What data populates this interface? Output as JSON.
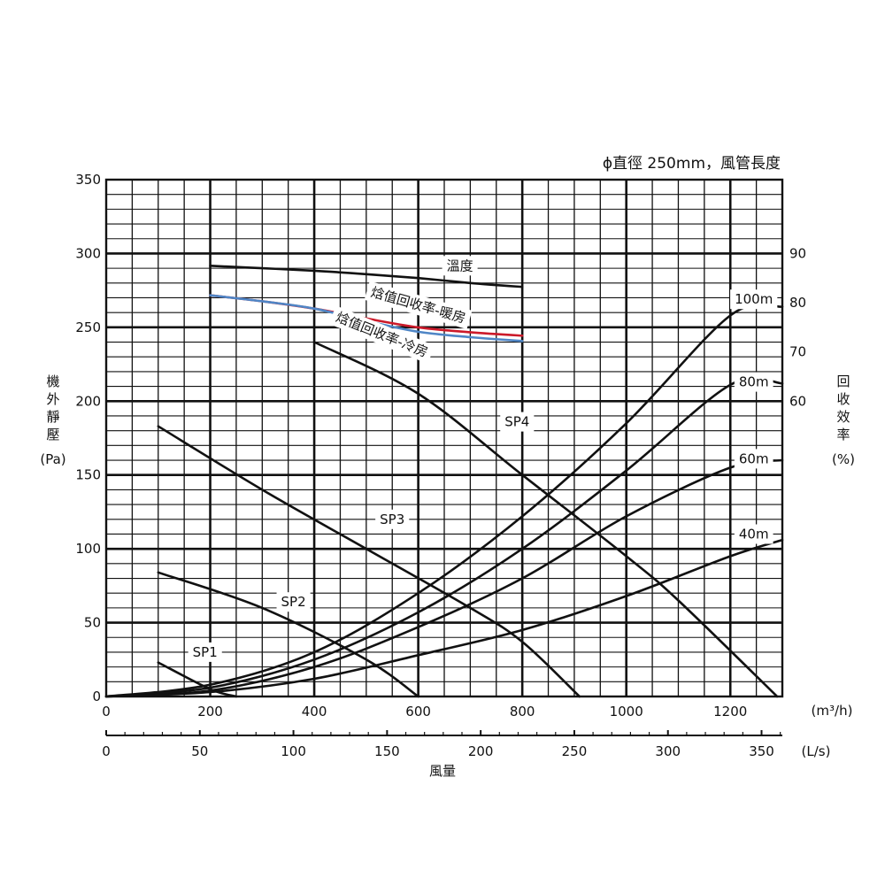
{
  "chart_data": {
    "type": "line",
    "title": "ϕ直徑 250mm，風管長度",
    "xlabel": "風量",
    "x_unit_primary": "(m³/h)",
    "x_unit_secondary": "(L/s)",
    "ylabel_left_chars": [
      "機",
      "外",
      "靜",
      "壓"
    ],
    "ylabel_left_unit": "(Pa)",
    "ylabel_right_chars": [
      "回",
      "收",
      "效",
      "率"
    ],
    "ylabel_right_unit": "(%)",
    "xlim": [
      0,
      1300
    ],
    "x_ticks": [
      0,
      200,
      400,
      600,
      800,
      1000,
      1200
    ],
    "x2lim": [
      0,
      361.1
    ],
    "x2_ticks": [
      0,
      50,
      100,
      150,
      200,
      250,
      300,
      350
    ],
    "ylim": [
      0,
      350
    ],
    "y_ticks": [
      0,
      50,
      100,
      150,
      200,
      250,
      300,
      350
    ],
    "y2lim": [
      0,
      105
    ],
    "y2_ticks": [
      60,
      70,
      80,
      90
    ],
    "grid": true,
    "series": [
      {
        "name": "SP1",
        "axis": "left",
        "color": "#111111",
        "x": [
          100,
          200,
          250
        ],
        "y": [
          23,
          5,
          0
        ]
      },
      {
        "name": "SP2",
        "axis": "left",
        "color": "#111111",
        "x": [
          100,
          300,
          500,
          600
        ],
        "y": [
          84,
          60,
          25,
          0
        ]
      },
      {
        "name": "SP3",
        "axis": "left",
        "color": "#111111",
        "x": [
          100,
          300,
          500,
          700,
          800,
          910
        ],
        "y": [
          183,
          140,
          100,
          60,
          37,
          0
        ]
      },
      {
        "name": "SP4",
        "axis": "left",
        "color": "#111111",
        "x": [
          400,
          600,
          800,
          1000,
          1100,
          1290
        ],
        "y": [
          240,
          205,
          150,
          95,
          65,
          0
        ]
      },
      {
        "name": "溫度",
        "axis": "right",
        "color": "#111111",
        "x": [
          200,
          300,
          400,
          500,
          600,
          700,
          800
        ],
        "y": [
          87.5,
          87.0,
          86.5,
          85.8,
          85.0,
          84.0,
          83.2
        ]
      },
      {
        "name": "焓值回收率-暖房",
        "axis": "right",
        "color": "#cc1a2a",
        "x": [
          200,
          300,
          400,
          500,
          600,
          700,
          800
        ],
        "y": [
          81.5,
          80.3,
          78.8,
          76.8,
          75.0,
          74.0,
          73.3
        ]
      },
      {
        "name": "焓值回收率-冷房",
        "axis": "right",
        "color": "#4f86c6",
        "x": [
          200,
          300,
          400,
          500,
          600,
          700,
          800
        ],
        "y": [
          81.5,
          80.3,
          78.8,
          76.3,
          74.1,
          73.0,
          72.2
        ]
      },
      {
        "name": "100m",
        "axis": "left",
        "color": "#111111",
        "x": [
          0,
          200,
          400,
          600,
          800,
          1000,
          1200,
          1300
        ],
        "y": [
          0,
          8,
          30,
          70,
          122,
          185,
          258,
          264
        ]
      },
      {
        "name": "80m",
        "axis": "left",
        "color": "#111111",
        "x": [
          0,
          200,
          400,
          600,
          800,
          1000,
          1200,
          1300
        ],
        "y": [
          0,
          6,
          25,
          57,
          100,
          153,
          211,
          212
        ]
      },
      {
        "name": "60m",
        "axis": "left",
        "color": "#111111",
        "x": [
          0,
          200,
          400,
          600,
          800,
          1000,
          1200,
          1300
        ],
        "y": [
          0,
          4,
          20,
          47,
          80,
          122,
          155,
          160
        ]
      },
      {
        "name": "40m",
        "axis": "left",
        "color": "#111111",
        "x": [
          0,
          200,
          400,
          600,
          800,
          1000,
          1200,
          1300
        ],
        "y": [
          0,
          3,
          12,
          28,
          45,
          68,
          95,
          106
        ]
      }
    ],
    "annotations": [
      {
        "text": "SP1",
        "x": 190,
        "y": 30
      },
      {
        "text": "SP2",
        "x": 360,
        "y": 64
      },
      {
        "text": "SP3",
        "x": 550,
        "y": 120
      },
      {
        "text": "SP4",
        "x": 790,
        "y": 186
      },
      {
        "text": "溫度",
        "x": 680,
        "y": 87.5,
        "axis": "right"
      },
      {
        "text": "焓值回收率-暖房",
        "x": 600,
        "y": 79.5,
        "axis": "right",
        "rotate": 16
      },
      {
        "text": "焓值回收率-冷房",
        "x": 530,
        "y": 73.5,
        "axis": "right",
        "rotate": 22
      },
      {
        "text": "100m",
        "x": 1245,
        "y": 269
      },
      {
        "text": "80m",
        "x": 1245,
        "y": 213
      },
      {
        "text": "60m",
        "x": 1245,
        "y": 161
      },
      {
        "text": "40m",
        "x": 1245,
        "y": 110
      }
    ]
  }
}
